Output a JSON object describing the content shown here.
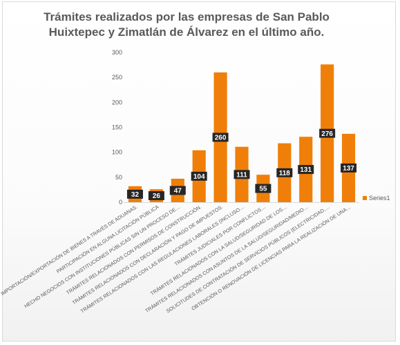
{
  "chart_data": {
    "type": "bar",
    "title": "Trámites realizados por las empresas de San Pablo Huixtepec y Zimatlán de Álvarez  en el último año.",
    "categories": [
      "IMPORTACIÓN/EXPORTACIÓN DE BIENES A TRAVÉS DE ADUANAS.",
      "PARTICIPACIÓN EN ALGUNA LICITACIÓN PÚBLICA",
      "HECHO NEGOCIOS CON INSTITUCIONES PÚBLICAS SIN UN PROCESO DE…",
      "TRÁMITES RELACIONADOS CON PERMISOS DE CONSTRUCCIÓN.",
      "TRÁMITES RELACIONADOS CON DECLARACIÓN Y PAGO DE IMPUESTOS.",
      "TRÁMITES RELACIONADOS CON LAS REGULACIONES LABORALES (INCLUSO…",
      "TRÁMITES JUDICIALES POR CONFLICTOS…",
      "TRÁMITES RELACIONADOS CON LA SALUD/SEGURIDAD DE LOS…",
      "TRÁMITES RELACIONADOS CON ASUNTOS DE LA SALUD/SEGURIDAD/MEDIO…",
      "SOLICITUDES DE CONTRATACIÓN DE SERVICIOS PÚBLICOS (ELECTRICIDAD,…",
      "OBTENCIÓN O RENOVACIÓN DE LICENCIAS PARA LA REALIZACIÓN DE UNA…"
    ],
    "series": [
      {
        "name": "Series1",
        "values": [
          32,
          26,
          47,
          104,
          260,
          111,
          55,
          118,
          131,
          276,
          137
        ]
      }
    ],
    "ylim": [
      0,
      300
    ],
    "yticks": [
      0,
      50,
      100,
      150,
      200,
      250,
      300
    ],
    "grid": false,
    "legend": "right",
    "colors": {
      "bar": "#F07F09",
      "label_box": "#262626",
      "axis_text": "#595959"
    }
  }
}
